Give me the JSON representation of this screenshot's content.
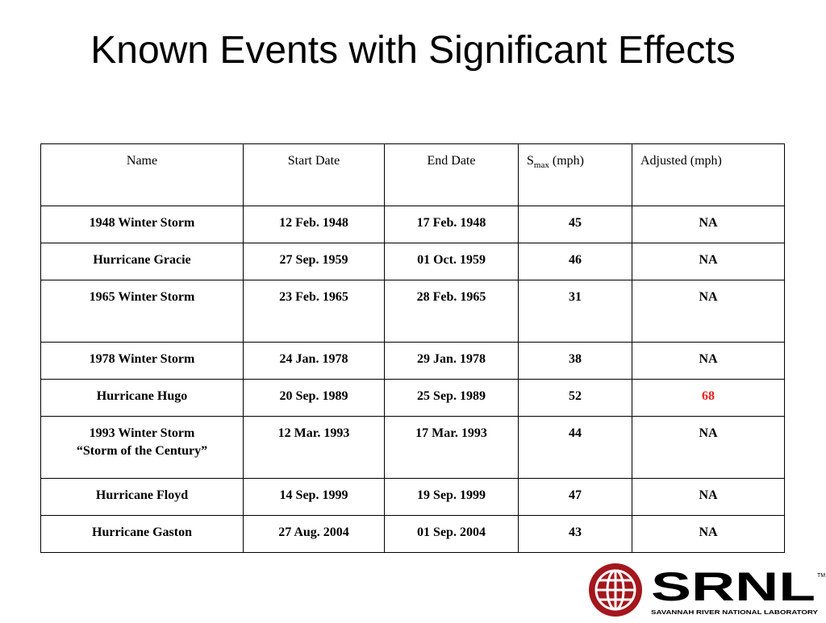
{
  "slide": {
    "title": "Known Events with Significant Effects"
  },
  "table": {
    "headers": {
      "name": "Name",
      "start_date": "Start Date",
      "end_date": "End Date",
      "smax_symbol": "S",
      "smax_sub": "max",
      "smax_unit": " (mph)",
      "adjusted": "Adjusted (mph)"
    },
    "rows": [
      {
        "name": "1948 Winter Storm",
        "name_line2": "",
        "start": "12 Feb. 1948",
        "end": "17 Feb. 1948",
        "smax": "45",
        "adjusted": "NA"
      },
      {
        "name": "Hurricane Gracie",
        "name_line2": "",
        "start": "27 Sep. 1959",
        "end": "01 Oct. 1959",
        "smax": "46",
        "adjusted": "NA"
      },
      {
        "name": "1965 Winter Storm",
        "name_line2": "",
        "start": "23 Feb. 1965",
        "end": "28 Feb. 1965",
        "smax": "31",
        "adjusted": "NA"
      },
      {
        "name": "1978 Winter Storm",
        "name_line2": "",
        "start": "24 Jan. 1978",
        "end": "29 Jan. 1978",
        "smax": "38",
        "adjusted": "NA"
      },
      {
        "name": "Hurricane Hugo",
        "name_line2": "",
        "start": "20 Sep. 1989",
        "end": "25 Sep. 1989",
        "smax": "52",
        "adjusted": "68"
      },
      {
        "name": "1993 Winter Storm",
        "name_line2": "“Storm of the Century”",
        "start": "12 Mar. 1993",
        "end": "17 Mar. 1993",
        "smax": "44",
        "adjusted": "NA"
      },
      {
        "name": "Hurricane Floyd",
        "name_line2": "",
        "start": "14 Sep. 1999",
        "end": "19 Sep. 1999",
        "smax": "47",
        "adjusted": "NA"
      },
      {
        "name": "Hurricane Gaston",
        "name_line2": "",
        "start": "27 Aug. 2004",
        "end": "01 Sep. 2004",
        "smax": "43",
        "adjusted": "NA"
      }
    ],
    "highlight_color": "#e8231e"
  },
  "logo": {
    "wordmark": "SRNL",
    "tagline": "SAVANNAH RIVER NATIONAL LABORATORY",
    "trademark": "TM",
    "brand_color": "#a3171d",
    "icon": "globe-icon"
  }
}
